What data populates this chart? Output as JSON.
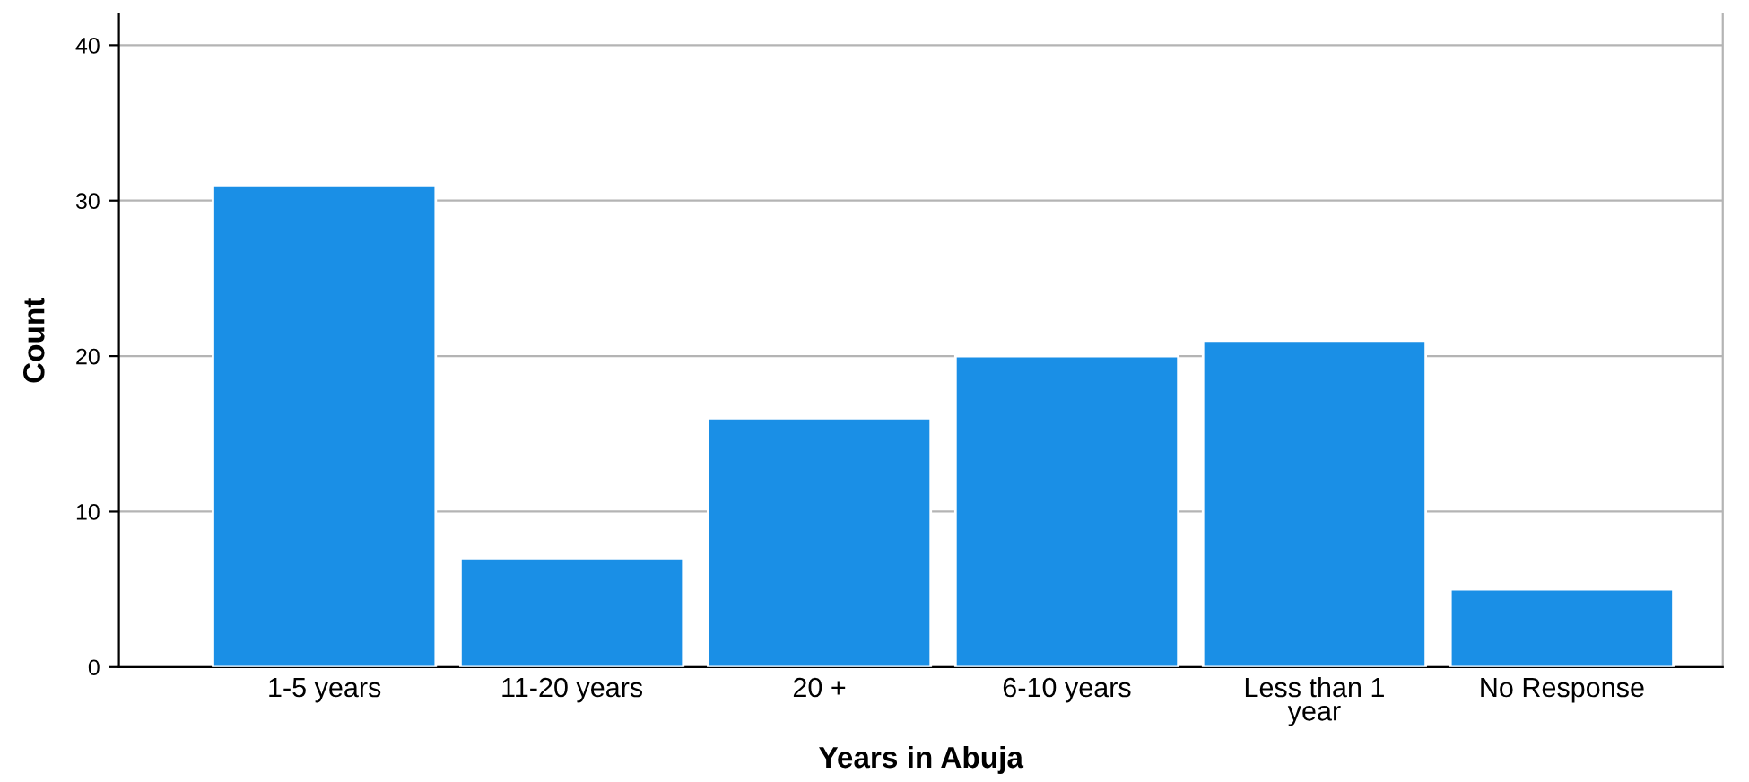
{
  "chart_data": {
    "type": "bar",
    "xlabel": "Years in Abuja",
    "ylabel": "Count",
    "categories": [
      "1-5 years",
      "11-20 years",
      "20 +",
      "6-10 years",
      "Less than 1 year",
      "No Response"
    ],
    "values": [
      31,
      7,
      16,
      20,
      21,
      5
    ],
    "color": "#1a8fe6",
    "ylim": [
      0,
      42
    ],
    "yticks": [
      0,
      10,
      20,
      30,
      40
    ],
    "grid": "y"
  }
}
